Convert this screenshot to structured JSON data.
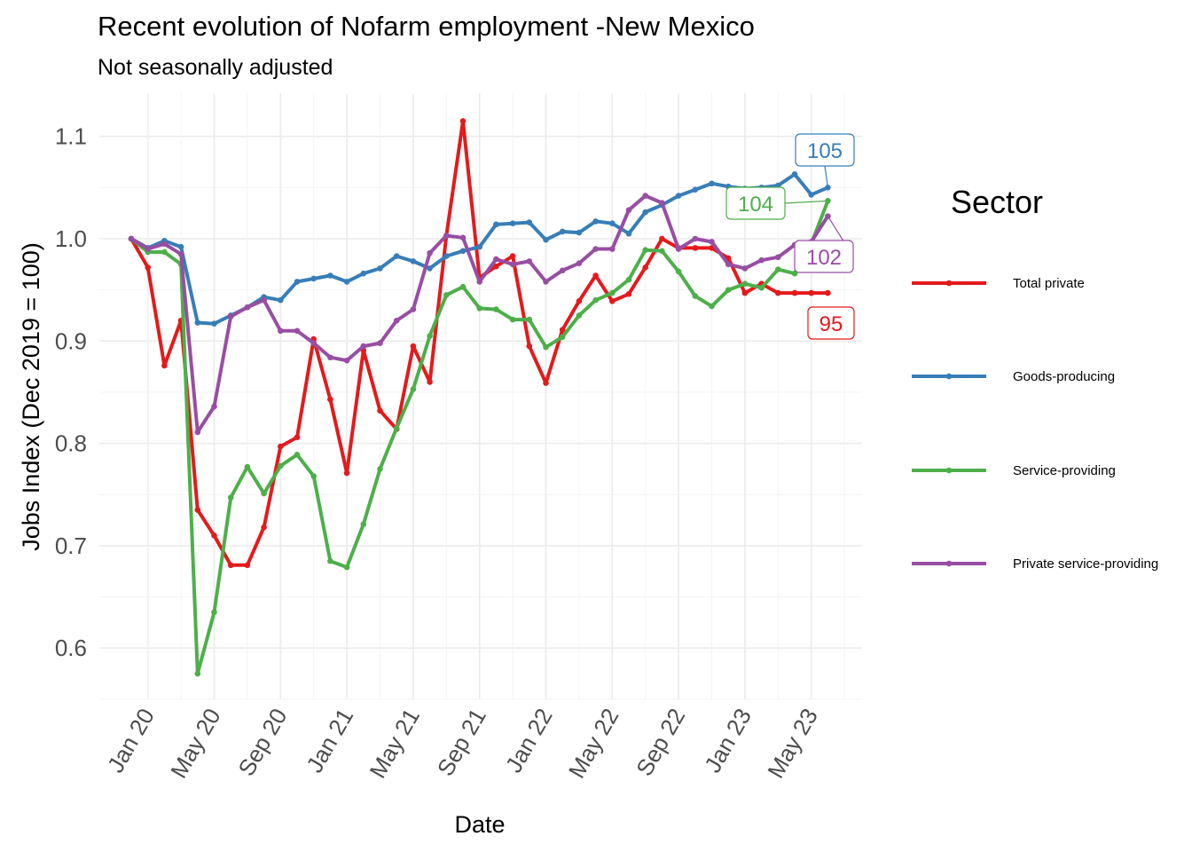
{
  "chart_data": {
    "type": "line",
    "title": "Recent evolution of Nofarm employment -New Mexico",
    "subtitle": "Not seasonally adjusted",
    "xlabel": "Date",
    "ylabel": "Jobs Index (Dec 2019 = 100)",
    "ylim": [
      0.55,
      1.13
    ],
    "y_ticks": [
      0.6,
      0.7,
      0.8,
      0.9,
      1.0,
      1.1
    ],
    "y_tick_labels": [
      "0.6",
      "0.7",
      "0.8",
      "0.9",
      "1.0",
      "1.1"
    ],
    "x_tick_labels": [
      "Jan 20",
      "May 20",
      "Sep 20",
      "Jan 21",
      "May 21",
      "Sep 21",
      "Jan 22",
      "May 22",
      "Sep 22",
      "Jan 23",
      "May 23"
    ],
    "x_dates": [
      "2019-12",
      "2020-01",
      "2020-02",
      "2020-03",
      "2020-04",
      "2020-05",
      "2020-06",
      "2020-07",
      "2020-08",
      "2020-09",
      "2020-10",
      "2020-11",
      "2020-12",
      "2021-01",
      "2021-02",
      "2021-03",
      "2021-04",
      "2021-05",
      "2021-06",
      "2021-07",
      "2021-08",
      "2021-09",
      "2021-10",
      "2021-11",
      "2021-12",
      "2022-01",
      "2022-02",
      "2022-03",
      "2022-04",
      "2022-05",
      "2022-06",
      "2022-07",
      "2022-08",
      "2022-09",
      "2022-10",
      "2022-11",
      "2022-12",
      "2023-01",
      "2023-02",
      "2023-03",
      "2023-04",
      "2023-05",
      "2023-06"
    ],
    "legend_title": "Sector",
    "legend_position": "right",
    "grid": true,
    "series": [
      {
        "name": "Total private",
        "color": "#e41a1c",
        "end_label": "95",
        "values": [
          1.0,
          0.972,
          0.876,
          0.92,
          0.735,
          0.71,
          0.681,
          0.681,
          0.718,
          0.797,
          0.806,
          0.902,
          0.843,
          0.771,
          0.891,
          0.832,
          0.814,
          0.895,
          0.86,
          1.003,
          1.115,
          0.962,
          0.973,
          0.983,
          0.895,
          0.859,
          0.911,
          0.939,
          0.964,
          0.939,
          0.946,
          0.972,
          1.0,
          0.991,
          0.991,
          0.991,
          0.981,
          0.947,
          0.956,
          0.947,
          0.947,
          0.947,
          0.947
        ]
      },
      {
        "name": "Goods-producing",
        "color": "#377eb8",
        "end_label": "105",
        "values": [
          1.0,
          0.991,
          0.998,
          0.992,
          0.918,
          0.917,
          0.925,
          0.933,
          0.943,
          0.94,
          0.958,
          0.961,
          0.964,
          0.958,
          0.966,
          0.971,
          0.983,
          0.978,
          0.971,
          0.983,
          0.988,
          0.992,
          1.014,
          1.015,
          1.016,
          0.999,
          1.007,
          1.006,
          1.017,
          1.015,
          1.005,
          1.026,
          1.033,
          1.042,
          1.048,
          1.054,
          1.051,
          1.049,
          1.05,
          1.052,
          1.063,
          1.043,
          1.05
        ]
      },
      {
        "name": "Service-providing",
        "color": "#4daf4a",
        "end_label": "104",
        "values": [
          1.0,
          0.987,
          0.987,
          0.975,
          0.575,
          0.635,
          0.747,
          0.777,
          0.751,
          0.778,
          0.789,
          0.768,
          0.685,
          0.679,
          0.721,
          0.775,
          0.815,
          0.853,
          0.905,
          0.945,
          0.953,
          0.932,
          0.931,
          0.921,
          0.921,
          0.894,
          0.904,
          0.925,
          0.94,
          0.947,
          0.96,
          0.989,
          0.988,
          0.968,
          0.944,
          0.934,
          0.95,
          0.956,
          0.952,
          0.97,
          0.966,
          0.995,
          1.037
        ]
      },
      {
        "name": "Private service-providing",
        "color": "#984ea3",
        "end_label": "102",
        "values": [
          1.0,
          0.99,
          0.995,
          0.985,
          0.811,
          0.836,
          0.924,
          0.933,
          0.94,
          0.91,
          0.91,
          0.898,
          0.884,
          0.881,
          0.895,
          0.898,
          0.92,
          0.931,
          0.986,
          1.003,
          1.001,
          0.958,
          0.98,
          0.975,
          0.978,
          0.958,
          0.969,
          0.976,
          0.99,
          0.99,
          1.028,
          1.042,
          1.035,
          0.99,
          1.0,
          0.997,
          0.975,
          0.971,
          0.979,
          0.982,
          0.994,
          0.997,
          1.022
        ]
      }
    ]
  }
}
